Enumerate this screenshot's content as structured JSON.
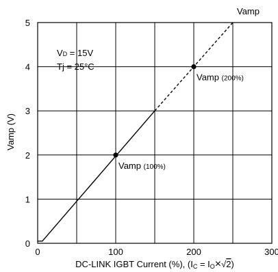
{
  "chart_data": {
    "type": "line",
    "title": "",
    "xlabel_main": "DC-LINK IGBT Current (%), (I",
    "xlabel_sub1": "C",
    "xlabel_mid": " = I",
    "xlabel_sub2": "O",
    "xlabel_times": "×",
    "xlabel_sqrt": "√",
    "xlabel_two": "2",
    "xlabel_end": ")",
    "ylabel": "Vamp (V)",
    "xlim": [
      0,
      300
    ],
    "ylim": [
      0,
      5
    ],
    "x_ticks": [
      0,
      100,
      200,
      300
    ],
    "y_ticks": [
      0,
      1,
      2,
      3,
      4,
      5
    ],
    "grid": true,
    "series": [
      {
        "name": "Vamp",
        "solid_x": [
          0,
          6,
          150
        ],
        "solid_y": [
          0.05,
          0.05,
          3.0
        ],
        "dashed_x": [
          150,
          250
        ],
        "dashed_y": [
          3.0,
          5.0
        ]
      }
    ],
    "points": [
      {
        "x": 100,
        "y": 2.0,
        "label_main": "Vamp",
        "label_sub": "(100%)"
      },
      {
        "x": 200,
        "y": 4.0,
        "label_main": "Vamp",
        "label_sub": "(200%)"
      }
    ],
    "series_label": "Vamp",
    "conditions": {
      "line1_main": "V",
      "line1_sub": "D",
      "line1_rest": " = 15V",
      "line2": "Tj = 25°C"
    }
  }
}
